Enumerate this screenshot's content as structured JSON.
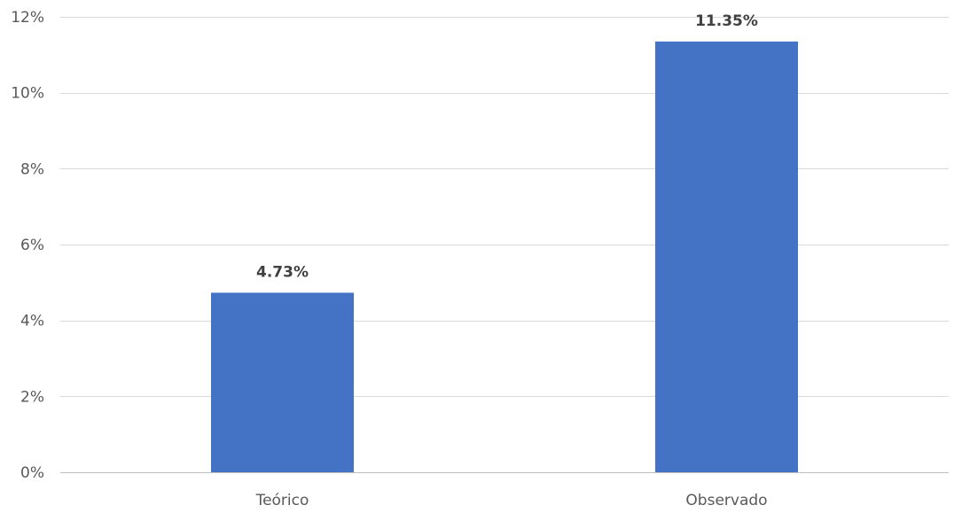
{
  "chart_data": {
    "type": "bar",
    "categories": [
      "Teórico",
      "Observado"
    ],
    "values": [
      4.73,
      11.35
    ],
    "data_labels": [
      "4.73%",
      "11.35%"
    ],
    "title": "",
    "xlabel": "",
    "ylabel": "",
    "ylim": [
      0,
      12
    ],
    "y_ticks": [
      0,
      2,
      4,
      6,
      8,
      10,
      12
    ],
    "y_tick_labels": [
      "0%",
      "2%",
      "4%",
      "6%",
      "8%",
      "10%",
      "12%"
    ],
    "grid": true,
    "legend": "none",
    "colors": {
      "bar": "#4472C4",
      "grid": "#D9D9D9",
      "axis_text": "#595959",
      "data_label": "#404040"
    }
  }
}
